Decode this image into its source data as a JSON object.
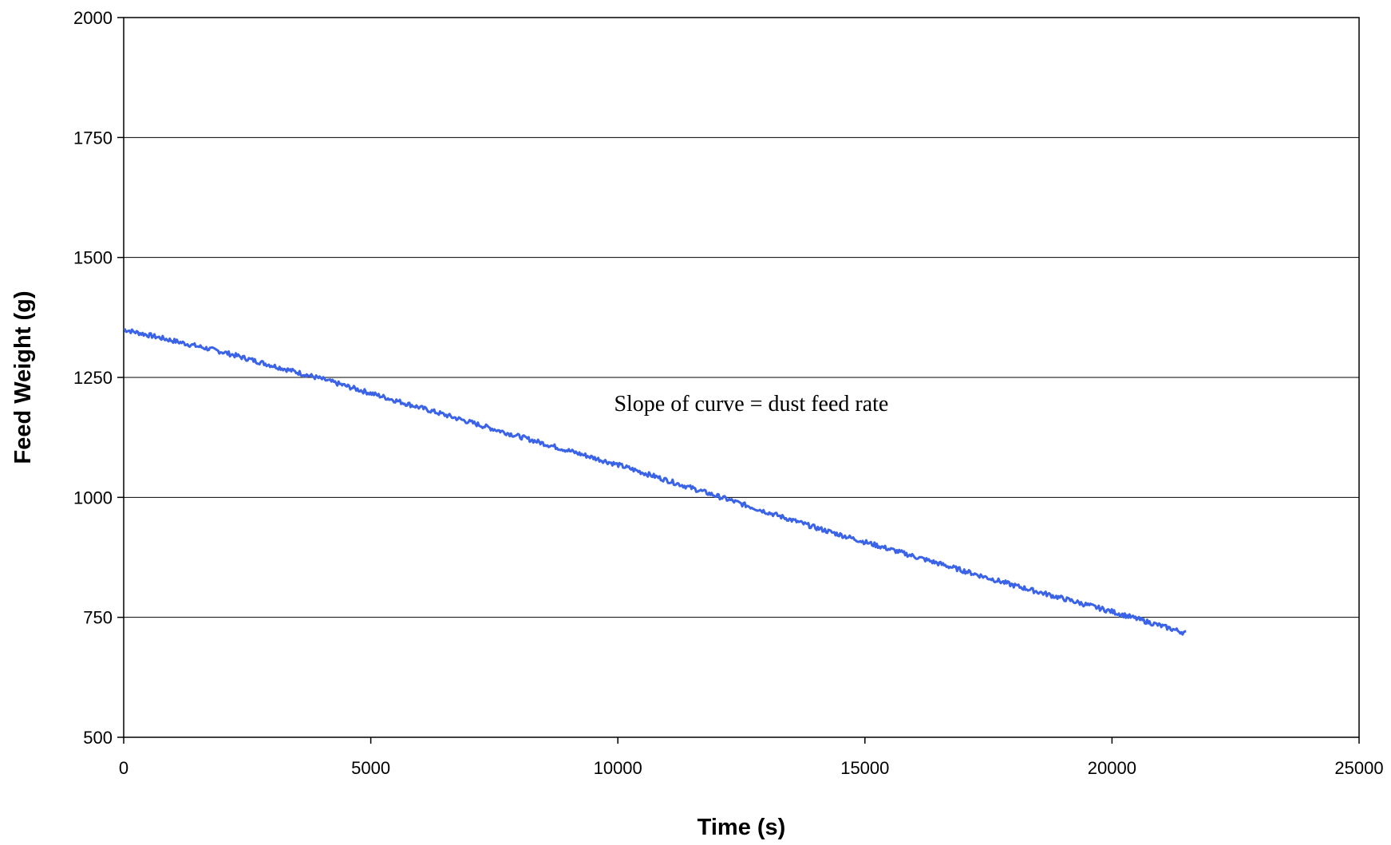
{
  "chart_data": {
    "type": "line",
    "title": "",
    "xlabel": "Time (s)",
    "ylabel": "Feed Weight (g)",
    "xlim": [
      0,
      25000
    ],
    "ylim": [
      500,
      2000
    ],
    "x_ticks": [
      "0",
      "5000",
      "10000",
      "15000",
      "20000",
      "25000"
    ],
    "y_ticks": [
      "500",
      "750",
      "1000",
      "1250",
      "1500",
      "1750",
      "2000"
    ],
    "grid": "horizontal",
    "series": [
      {
        "color": "#3b63e8",
        "x": [
          0,
          2000,
          4000,
          6000,
          8000,
          10000,
          12000,
          14000,
          16000,
          18000,
          20000,
          21500
        ],
        "y": [
          1350,
          1303,
          1247,
          1187,
          1127,
          1068,
          1003,
          937,
          877,
          817,
          762,
          717
        ]
      }
    ],
    "annotations": [
      {
        "text": "Slope of curve = dust feed rate",
        "x": 12700,
        "y": 1180
      }
    ]
  }
}
